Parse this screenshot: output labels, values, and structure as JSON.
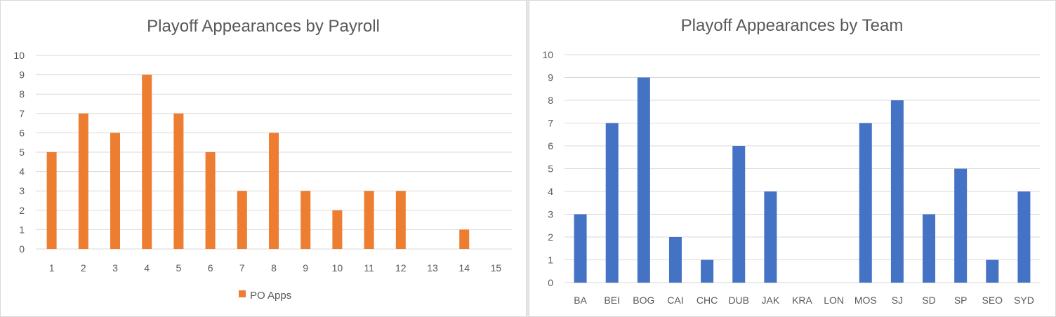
{
  "chart_data": [
    {
      "type": "bar",
      "title": "Playoff Appearances by Payroll",
      "xlabel": "",
      "ylabel": "",
      "categories": [
        "1",
        "2",
        "3",
        "4",
        "5",
        "6",
        "7",
        "8",
        "9",
        "10",
        "11",
        "12",
        "13",
        "14",
        "15"
      ],
      "series": [
        {
          "name": "PO Apps",
          "values": [
            5,
            7,
            6,
            9,
            7,
            5,
            3,
            6,
            3,
            2,
            3,
            3,
            0,
            1,
            0
          ]
        }
      ],
      "ylim": [
        0,
        10
      ],
      "yticks": [
        "0",
        "1",
        "2",
        "3",
        "4",
        "5",
        "6",
        "7",
        "8",
        "9",
        "10"
      ],
      "grid": true,
      "legend": "bottom",
      "color": "#ed7d31"
    },
    {
      "type": "bar",
      "title": "Playoff Appearances by Team",
      "xlabel": "",
      "ylabel": "",
      "categories": [
        "BA",
        "BEI",
        "BOG",
        "CAI",
        "CHC",
        "DUB",
        "JAK",
        "KRA",
        "LON",
        "MOS",
        "SJ",
        "SD",
        "SP",
        "SEO",
        "SYD"
      ],
      "series": [
        {
          "values": [
            3,
            7,
            9,
            2,
            1,
            6,
            4,
            0,
            0,
            7,
            8,
            3,
            5,
            1,
            4
          ]
        }
      ],
      "ylim": [
        0,
        10
      ],
      "yticks": [
        "0",
        "1",
        "2",
        "3",
        "4",
        "5",
        "6",
        "7",
        "8",
        "9",
        "10"
      ],
      "grid": true,
      "legend": "none",
      "color": "#4472c4"
    }
  ]
}
